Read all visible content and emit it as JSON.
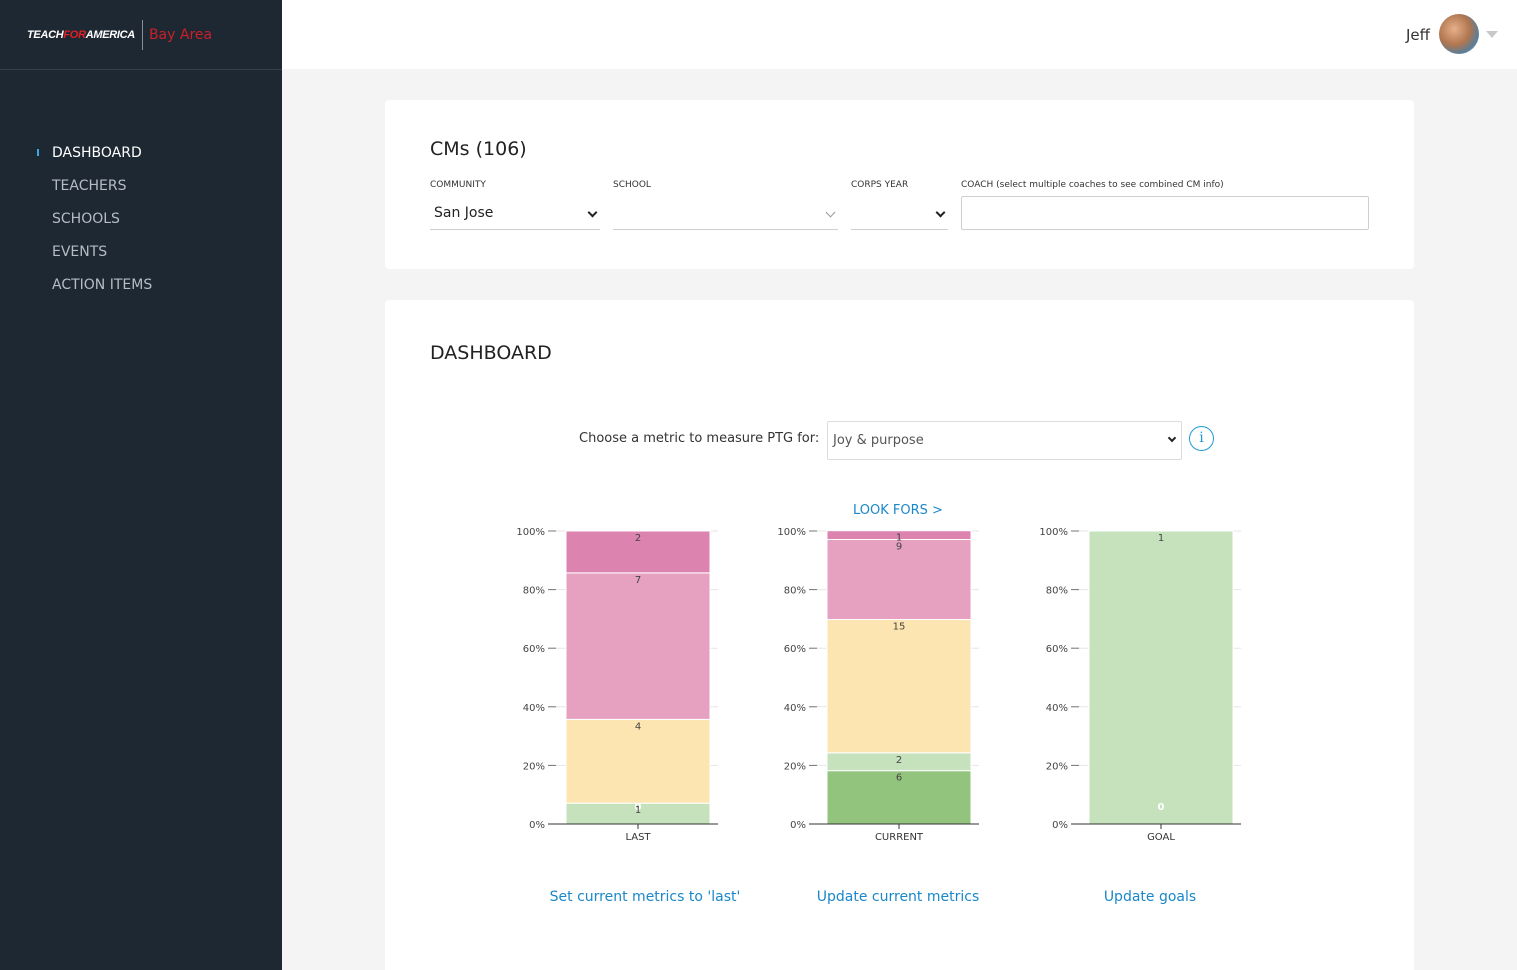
{
  "brand": {
    "logo_part1": "TEACH",
    "logo_part2": "FOR",
    "logo_part3": "AMERICA",
    "region": "Bay Area"
  },
  "nav": {
    "items": [
      {
        "label": "DASHBOARD",
        "active": true
      },
      {
        "label": "TEACHERS",
        "active": false
      },
      {
        "label": "SCHOOLS",
        "active": false
      },
      {
        "label": "EVENTS",
        "active": false
      },
      {
        "label": "ACTION ITEMS",
        "active": false
      }
    ]
  },
  "user": {
    "name": "Jeff"
  },
  "filters": {
    "title": "CMs (106)",
    "community_label": "COMMUNITY",
    "community_value": "San Jose",
    "school_label": "SCHOOL",
    "school_value": "",
    "corps_year_label": "CORPS YEAR",
    "corps_year_value": "",
    "coach_label": "COACH (select multiple coaches to see combined CM info)",
    "coach_value": ""
  },
  "dashboard": {
    "title": "DASHBOARD",
    "metric_label": "Choose a metric to measure PTG for:",
    "metric_value": "Joy & purpose",
    "info_icon": "info-icon",
    "look_fors": "LOOK FORS >",
    "actions": {
      "set_last": "Set current metrics to 'last'",
      "update_current": "Update current metrics",
      "update_goals": "Update goals"
    }
  },
  "chart_data": {
    "type": "bar",
    "stacked": true,
    "y_unit": "percent",
    "ylim": [
      0,
      100
    ],
    "y_ticks": [
      "0%",
      "20%",
      "40%",
      "60%",
      "80%",
      "100%"
    ],
    "categories": [
      "LAST",
      "CURRENT",
      "GOAL"
    ],
    "colors": [
      "#93c47d",
      "#c6e2bc",
      "#fce5b0",
      "#e6a0c0",
      "#dd83b0",
      "#ea9999"
    ],
    "bars": [
      {
        "category": "LAST",
        "segments": [
          {
            "value": 0,
            "label": "0"
          },
          {
            "value": 7.1,
            "label": "1"
          },
          {
            "value": 28.6,
            "label": "4"
          },
          {
            "value": 50.0,
            "label": "7"
          },
          {
            "value": 14.3,
            "label": "2"
          },
          {
            "value": 0,
            "label": "0"
          }
        ]
      },
      {
        "category": "CURRENT",
        "segments": [
          {
            "value": 18.2,
            "label": "6"
          },
          {
            "value": 6.1,
            "label": "2"
          },
          {
            "value": 45.5,
            "label": "15"
          },
          {
            "value": 27.3,
            "label": "9"
          },
          {
            "value": 3.0,
            "label": "1"
          },
          {
            "value": 0,
            "label": "0"
          }
        ]
      },
      {
        "category": "GOAL",
        "segments": [
          {
            "value": 0,
            "label": "0"
          },
          {
            "value": 100,
            "label": "1"
          },
          {
            "value": 0,
            "label": "0"
          },
          {
            "value": 0,
            "label": "0"
          },
          {
            "value": 0,
            "label": "0"
          },
          {
            "value": 0,
            "label": "0"
          }
        ]
      }
    ],
    "grid": true,
    "legend": "none"
  }
}
